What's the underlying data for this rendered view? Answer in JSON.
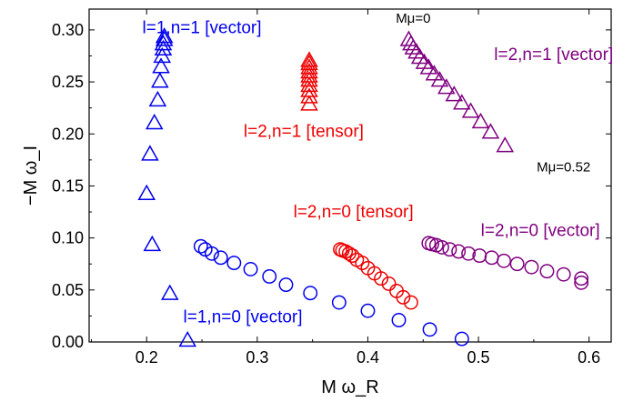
{
  "chart_data": {
    "type": "scatter",
    "xlabel": "M ω_R",
    "ylabel": "−M ω_I",
    "xlim": [
      0.148,
      0.62
    ],
    "ylim": [
      0.0,
      0.32
    ],
    "xticks": [
      "0.2",
      "0.3",
      "0.4",
      "0.5",
      "0.6"
    ],
    "yticks": [
      "0.00",
      "0.05",
      "0.10",
      "0.15",
      "0.20",
      "0.25",
      "0.30"
    ],
    "frame": "box",
    "grid": false,
    "colors": {
      "blue": "#0000ee",
      "red": "#ee0000",
      "purple": "#800080"
    },
    "series": [
      {
        "marker": "triangle-icon",
        "color": "#0000ee",
        "points": [
          [
            0.237,
            0.001
          ],
          [
            0.221,
            0.046
          ],
          [
            0.205,
            0.093
          ],
          [
            0.2,
            0.142
          ],
          [
            0.203,
            0.18
          ],
          [
            0.207,
            0.21
          ],
          [
            0.21,
            0.232
          ],
          [
            0.212,
            0.25
          ],
          [
            0.213,
            0.264
          ],
          [
            0.214,
            0.274
          ],
          [
            0.215,
            0.281
          ],
          [
            0.215,
            0.286
          ],
          [
            0.216,
            0.29
          ],
          [
            0.216,
            0.293
          ]
        ]
      },
      {
        "marker": "circle-icon",
        "color": "#0000ee",
        "points": [
          [
            0.249,
            0.092
          ],
          [
            0.253,
            0.089
          ],
          [
            0.259,
            0.085
          ],
          [
            0.267,
            0.081
          ],
          [
            0.279,
            0.076
          ],
          [
            0.294,
            0.07
          ],
          [
            0.311,
            0.063
          ],
          [
            0.326,
            0.055
          ],
          [
            0.348,
            0.047
          ],
          [
            0.374,
            0.038
          ],
          [
            0.4,
            0.03
          ],
          [
            0.428,
            0.021
          ],
          [
            0.456,
            0.012
          ],
          [
            0.485,
            0.003
          ]
        ]
      },
      {
        "marker": "triangle-icon",
        "color": "#ee0000",
        "points": [
          [
            0.347,
            0.228
          ],
          [
            0.347,
            0.235
          ],
          [
            0.347,
            0.241
          ],
          [
            0.347,
            0.246
          ],
          [
            0.347,
            0.251
          ],
          [
            0.347,
            0.255
          ],
          [
            0.347,
            0.259
          ],
          [
            0.347,
            0.263
          ],
          [
            0.347,
            0.267
          ],
          [
            0.347,
            0.27
          ]
        ]
      },
      {
        "marker": "circle-icon",
        "color": "#ee0000",
        "points": [
          [
            0.375,
            0.089
          ],
          [
            0.377,
            0.088
          ],
          [
            0.38,
            0.087
          ],
          [
            0.383,
            0.085
          ],
          [
            0.386,
            0.083
          ],
          [
            0.39,
            0.079
          ],
          [
            0.395,
            0.076
          ],
          [
            0.4,
            0.071
          ],
          [
            0.406,
            0.066
          ],
          [
            0.412,
            0.061
          ],
          [
            0.419,
            0.056
          ],
          [
            0.426,
            0.049
          ],
          [
            0.432,
            0.043
          ],
          [
            0.439,
            0.038
          ]
        ]
      },
      {
        "marker": "triangle-icon",
        "color": "#800080",
        "points": [
          [
            0.437,
            0.29
          ],
          [
            0.439,
            0.286
          ],
          [
            0.441,
            0.282
          ],
          [
            0.444,
            0.278
          ],
          [
            0.447,
            0.273
          ],
          [
            0.451,
            0.268
          ],
          [
            0.455,
            0.263
          ],
          [
            0.46,
            0.257
          ],
          [
            0.465,
            0.251
          ],
          [
            0.471,
            0.244
          ],
          [
            0.478,
            0.237
          ],
          [
            0.485,
            0.229
          ],
          [
            0.493,
            0.221
          ],
          [
            0.502,
            0.211
          ],
          [
            0.511,
            0.201
          ],
          [
            0.524,
            0.188
          ]
        ]
      },
      {
        "marker": "circle-icon",
        "color": "#800080",
        "points": [
          [
            0.455,
            0.095
          ],
          [
            0.458,
            0.094
          ],
          [
            0.462,
            0.093
          ],
          [
            0.467,
            0.091
          ],
          [
            0.474,
            0.089
          ],
          [
            0.482,
            0.087
          ],
          [
            0.491,
            0.085
          ],
          [
            0.501,
            0.083
          ],
          [
            0.512,
            0.081
          ],
          [
            0.523,
            0.078
          ],
          [
            0.535,
            0.075
          ],
          [
            0.548,
            0.072
          ],
          [
            0.562,
            0.068
          ],
          [
            0.577,
            0.065
          ],
          [
            0.593,
            0.061
          ],
          [
            0.593,
            0.057
          ]
        ]
      }
    ],
    "annotations": [
      {
        "text": "l=1,n=1 [vector]",
        "color": "#0000ee",
        "x": 0.25,
        "y": 0.297
      },
      {
        "text": "l=2,n=1 [tensor]",
        "color": "#ee0000",
        "x": 0.342,
        "y": 0.197
      },
      {
        "text": "l=2,n=1 [vector]",
        "color": "#800080",
        "x": 0.568,
        "y": 0.271
      },
      {
        "text": "l=2,n=0 [tensor]",
        "color": "#ee0000",
        "x": 0.387,
        "y": 0.12
      },
      {
        "text": "l=2,n=0 [vector]",
        "color": "#800080",
        "x": 0.556,
        "y": 0.102
      },
      {
        "text": "l=1,n=0 [vector]",
        "color": "#0000ee",
        "x": 0.287,
        "y": 0.019
      },
      {
        "text": "Mμ=0",
        "color": "#000000",
        "x": 0.441,
        "y": 0.307
      },
      {
        "text": "Mμ=0.52",
        "color": "#000000",
        "x": 0.577,
        "y": 0.164
      }
    ]
  }
}
